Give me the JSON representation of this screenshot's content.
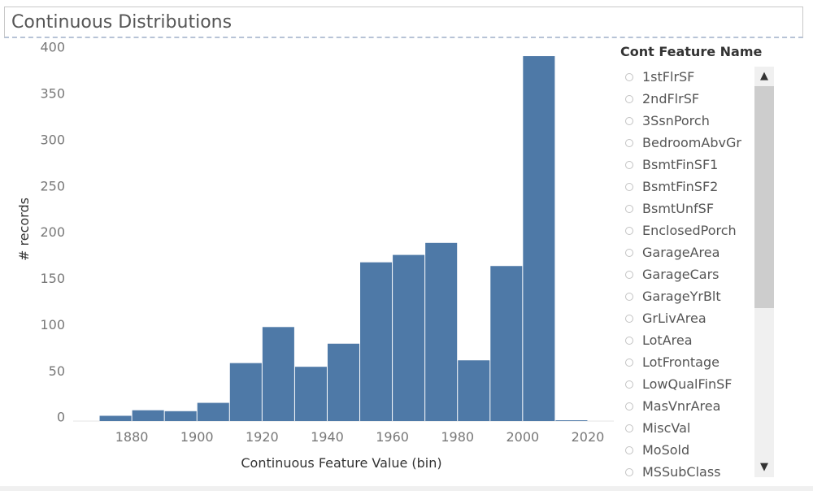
{
  "title": "Continuous Distributions",
  "chart_data": {
    "type": "bar",
    "xlabel": "Continuous Feature Value (bin)",
    "ylabel": "# records",
    "bin_width": 10,
    "bins": [
      1870,
      1880,
      1890,
      1900,
      1910,
      1920,
      1930,
      1940,
      1950,
      1960,
      1970,
      1980,
      1990,
      2000,
      2010
    ],
    "values": [
      1,
      7,
      6,
      15,
      58,
      97,
      54,
      79,
      167,
      175,
      188,
      61,
      163,
      390,
      0
    ],
    "xlim": [
      1862,
      2028
    ],
    "ylim": [
      -10,
      405
    ],
    "x_ticks": [
      1880,
      1900,
      1920,
      1940,
      1960,
      1980,
      2000,
      2020
    ],
    "x_tick_labels": [
      "1880",
      "1900",
      "1920",
      "1940",
      "1960",
      "1980",
      "2000",
      "2020"
    ],
    "y_ticks": [
      0,
      50,
      100,
      150,
      200,
      250,
      300,
      350,
      400
    ],
    "y_tick_labels": [
      "0",
      "50",
      "100",
      "150",
      "200",
      "250",
      "300",
      "350",
      "400"
    ],
    "bar_color": "#4e79a7",
    "grid": false
  },
  "legend": {
    "title": "Cont Feature Name",
    "items": [
      "1stFlrSF",
      "2ndFlrSF",
      "3SsnPorch",
      "BedroomAbvGr",
      "BsmtFinSF1",
      "BsmtFinSF2",
      "BsmtUnfSF",
      "EnclosedPorch",
      "GarageArea",
      "GarageCars",
      "GarageYrBlt",
      "GrLivArea",
      "LotArea",
      "LotFrontage",
      "LowQualFinSF",
      "MasVnrArea",
      "MiscVal",
      "MoSold",
      "MSSubClass"
    ]
  },
  "scrollbar": {
    "up_icon": "▲",
    "down_icon": "▼"
  }
}
